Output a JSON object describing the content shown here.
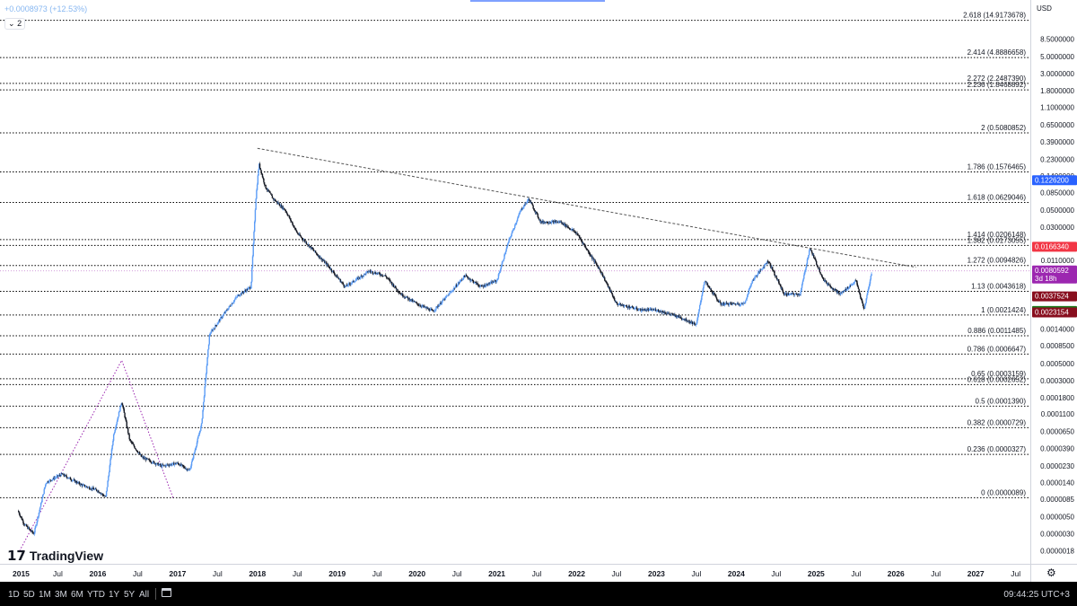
{
  "header": {
    "change_text": "+0.0008973 (+12.53%)",
    "indicator_count": "2"
  },
  "price_axis": {
    "currency": "USD",
    "labels": [
      {
        "price": 8.5,
        "text": "8.5000000"
      },
      {
        "price": 5.0,
        "text": "5.0000000"
      },
      {
        "price": 3.0,
        "text": "3.0000000"
      },
      {
        "price": 1.8,
        "text": "1.8000000"
      },
      {
        "price": 1.1,
        "text": "1.1000000"
      },
      {
        "price": 0.65,
        "text": "0.6500000"
      },
      {
        "price": 0.39,
        "text": "0.3900000"
      },
      {
        "price": 0.23,
        "text": "0.2300000"
      },
      {
        "price": 0.14,
        "text": "0.1400000"
      },
      {
        "price": 0.085,
        "text": "0.0850000"
      },
      {
        "price": 0.05,
        "text": "0.0500000"
      },
      {
        "price": 0.03,
        "text": "0.0300000"
      },
      {
        "price": 0.011,
        "text": "0.0110000"
      },
      {
        "price": 0.0014,
        "text": "0.0014000"
      },
      {
        "price": 0.00085,
        "text": "0.0008500"
      },
      {
        "price": 0.0005,
        "text": "0.0005000"
      },
      {
        "price": 0.0003,
        "text": "0.0003000"
      },
      {
        "price": 0.00018,
        "text": "0.0001800"
      },
      {
        "price": 0.00011,
        "text": "0.0001100"
      },
      {
        "price": 6.5e-05,
        "text": "0.0000650"
      },
      {
        "price": 3.9e-05,
        "text": "0.0000390"
      },
      {
        "price": 2.3e-05,
        "text": "0.0000230"
      },
      {
        "price": 1.4e-05,
        "text": "0.0000140"
      },
      {
        "price": 8.5e-06,
        "text": "0.0000085"
      },
      {
        "price": 5e-06,
        "text": "0.0000050"
      },
      {
        "price": 3e-06,
        "text": "0.0000030"
      },
      {
        "price": 1.8e-06,
        "text": "0.0000018"
      }
    ],
    "badges": [
      {
        "price": 0.12262,
        "text": "0.1226200",
        "color": "#2962ff"
      },
      {
        "price": 0.016634,
        "text": "0.0166340",
        "color": "#f23645"
      },
      {
        "price": 0.0080592,
        "text": "0.0080592",
        "sub": "3d 18h",
        "color": "#9c27b0"
      },
      {
        "price": 0.0037524,
        "text": "0.0037524",
        "color": "#880e1e"
      },
      {
        "price": 0.0024224,
        "text": "0.0024224",
        "color": "#1b7a1b"
      },
      {
        "price": 0.0023154,
        "text": "0.0023154",
        "color": "#880e1e"
      }
    ]
  },
  "time_axis": {
    "labels": [
      "2015",
      "Jul",
      "2016",
      "Jul",
      "2017",
      "Jul",
      "2018",
      "Jul",
      "2019",
      "Jul",
      "2020",
      "Jul",
      "2021",
      "Jul",
      "2022",
      "Jul",
      "2023",
      "Jul",
      "2024",
      "Jul",
      "2025",
      "Jul",
      "2026",
      "Jul",
      "2027",
      "Jul"
    ],
    "bold": [
      "2015",
      "2016",
      "2017",
      "2018",
      "2019",
      "2020",
      "2021",
      "2022",
      "2023",
      "2024",
      "2025",
      "2026",
      "2027"
    ]
  },
  "bottom_bar": {
    "ranges": [
      "1D",
      "5D",
      "1M",
      "3M",
      "6M",
      "YTD",
      "1Y",
      "5Y",
      "All"
    ],
    "clock": "09:44:25 UTC+3"
  },
  "logo": {
    "text": "TradingView"
  },
  "chart_data": {
    "type": "candlestick",
    "scale": "log",
    "colors": {
      "up": "#5b9cf6",
      "down": "#131722",
      "fib_line": "#000000",
      "trendline": "#555555",
      "projection": "#9c27b0"
    },
    "fib_levels": [
      {
        "ratio": "2.618",
        "price": 14.9173678,
        "text": "2.618 (14.9173678)"
      },
      {
        "ratio": "2.414",
        "price": 4.8886658,
        "text": "2.414 (4.8886658)"
      },
      {
        "ratio": "2.272",
        "price": 2.248739,
        "text": "2.272 (2.2487390)"
      },
      {
        "ratio": "2.236",
        "price": 1.8468892,
        "text": "2.236 (1.8468892)"
      },
      {
        "ratio": "2",
        "price": 0.5080852,
        "text": "2 (0.5080852)"
      },
      {
        "ratio": "1.786",
        "price": 0.1576465,
        "text": "1.786 (0.1576465)"
      },
      {
        "ratio": "1.618",
        "price": 0.0629046,
        "text": "1.618 (0.0629046)"
      },
      {
        "ratio": "1.414",
        "price": 0.0206148,
        "text": "1.414 (0.0206148)"
      },
      {
        "ratio": "1.382",
        "price": 0.0173055,
        "text": "1.382 (0.0173055)"
      },
      {
        "ratio": "1.272",
        "price": 0.0094826,
        "text": "1.272 (0.0094826)"
      },
      {
        "ratio": "1.13",
        "price": 0.0043618,
        "text": "1.13 (0.0043618)"
      },
      {
        "ratio": "1",
        "price": 0.0021424,
        "text": "1 (0.0021424)"
      },
      {
        "ratio": "0.886",
        "price": 0.0011485,
        "text": "0.886 (0.0011485)"
      },
      {
        "ratio": "0.786",
        "price": 0.0006647,
        "text": "0.786 (0.0006647)"
      },
      {
        "ratio": "0.65",
        "price": 0.0003159,
        "text": "0.65 (0.0003159)"
      },
      {
        "ratio": "0.618",
        "price": 0.0002652,
        "text": "0.618 (0.0002652)"
      },
      {
        "ratio": "0.5",
        "price": 0.000139,
        "text": "0.5 (0.0001390)"
      },
      {
        "ratio": "0.382",
        "price": 7.29e-05,
        "text": "0.382 (0.0000729)"
      },
      {
        "ratio": "0.236",
        "price": 3.27e-05,
        "text": "0.236 (0.0000327)"
      },
      {
        "ratio": "0",
        "price": 8.9e-06,
        "text": "0 (0.0000089)"
      }
    ],
    "price_path": [
      {
        "t": 2015.0,
        "p": 6e-06
      },
      {
        "t": 2015.08,
        "p": 4e-06
      },
      {
        "t": 2015.2,
        "p": 3e-06
      },
      {
        "t": 2015.35,
        "p": 1.4e-05
      },
      {
        "t": 2015.55,
        "p": 1.8e-05
      },
      {
        "t": 2015.8,
        "p": 1.3e-05
      },
      {
        "t": 2016.0,
        "p": 1.1e-05
      },
      {
        "t": 2016.1,
        "p": 9e-06
      },
      {
        "t": 2016.2,
        "p": 6e-05
      },
      {
        "t": 2016.3,
        "p": 0.00016
      },
      {
        "t": 2016.4,
        "p": 5e-05
      },
      {
        "t": 2016.55,
        "p": 3e-05
      },
      {
        "t": 2016.8,
        "p": 2.3e-05
      },
      {
        "t": 2017.0,
        "p": 2.5e-05
      },
      {
        "t": 2017.15,
        "p": 2e-05
      },
      {
        "t": 2017.3,
        "p": 8e-05
      },
      {
        "t": 2017.4,
        "p": 0.0012
      },
      {
        "t": 2017.55,
        "p": 0.002
      },
      {
        "t": 2017.75,
        "p": 0.0038
      },
      {
        "t": 2017.92,
        "p": 0.005
      },
      {
        "t": 2017.98,
        "p": 0.07
      },
      {
        "t": 2018.02,
        "p": 0.2
      },
      {
        "t": 2018.1,
        "p": 0.1
      },
      {
        "t": 2018.2,
        "p": 0.07
      },
      {
        "t": 2018.35,
        "p": 0.05
      },
      {
        "t": 2018.5,
        "p": 0.025
      },
      {
        "t": 2018.7,
        "p": 0.015
      },
      {
        "t": 2018.9,
        "p": 0.009
      },
      {
        "t": 2019.1,
        "p": 0.005
      },
      {
        "t": 2019.4,
        "p": 0.008
      },
      {
        "t": 2019.6,
        "p": 0.007
      },
      {
        "t": 2019.8,
        "p": 0.004
      },
      {
        "t": 2020.0,
        "p": 0.003
      },
      {
        "t": 2020.2,
        "p": 0.0024
      },
      {
        "t": 2020.4,
        "p": 0.004
      },
      {
        "t": 2020.6,
        "p": 0.007
      },
      {
        "t": 2020.8,
        "p": 0.005
      },
      {
        "t": 2021.0,
        "p": 0.006
      },
      {
        "t": 2021.15,
        "p": 0.02
      },
      {
        "t": 2021.3,
        "p": 0.05
      },
      {
        "t": 2021.4,
        "p": 0.07
      },
      {
        "t": 2021.55,
        "p": 0.035
      },
      {
        "t": 2021.8,
        "p": 0.035
      },
      {
        "t": 2022.0,
        "p": 0.025
      },
      {
        "t": 2022.3,
        "p": 0.008
      },
      {
        "t": 2022.5,
        "p": 0.003
      },
      {
        "t": 2022.8,
        "p": 0.0025
      },
      {
        "t": 2023.0,
        "p": 0.0025
      },
      {
        "t": 2023.3,
        "p": 0.002
      },
      {
        "t": 2023.5,
        "p": 0.0016
      },
      {
        "t": 2023.6,
        "p": 0.006
      },
      {
        "t": 2023.8,
        "p": 0.003
      },
      {
        "t": 2024.1,
        "p": 0.003
      },
      {
        "t": 2024.2,
        "p": 0.006
      },
      {
        "t": 2024.4,
        "p": 0.011
      },
      {
        "t": 2024.6,
        "p": 0.004
      },
      {
        "t": 2024.8,
        "p": 0.004
      },
      {
        "t": 2024.92,
        "p": 0.016
      },
      {
        "t": 2025.1,
        "p": 0.006
      },
      {
        "t": 2025.3,
        "p": 0.004
      },
      {
        "t": 2025.5,
        "p": 0.006
      },
      {
        "t": 2025.6,
        "p": 0.0025
      },
      {
        "t": 2025.7,
        "p": 0.0080592
      }
    ],
    "trendline": [
      {
        "t": 2018.0,
        "p": 0.32
      },
      {
        "t": 2026.25,
        "p": 0.009
      }
    ],
    "projection": [
      {
        "t": 2015.02,
        "p": 1.8e-06
      },
      {
        "t": 2016.3,
        "p": 0.00055
      },
      {
        "t": 2016.95,
        "p": 8.5e-06
      }
    ],
    "time_range": [
      2015.0,
      2027.65
    ],
    "price_range": [
      1.6e-06,
      21.0
    ]
  }
}
